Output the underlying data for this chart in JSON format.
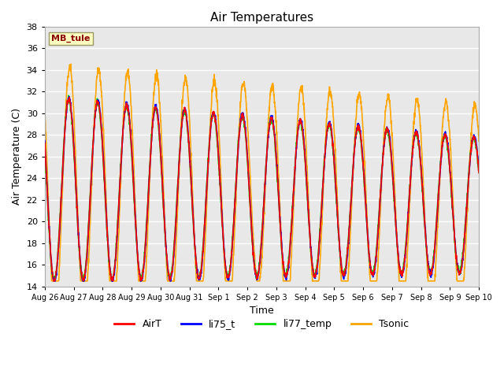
{
  "title": "Air Temperatures",
  "xlabel": "Time",
  "ylabel": "Air Temperature (C)",
  "ylim": [
    14,
    38
  ],
  "yticks": [
    14,
    16,
    18,
    20,
    22,
    24,
    26,
    28,
    30,
    32,
    34,
    36,
    38
  ],
  "site_label": "MB_tule",
  "site_label_color": "#8B0000",
  "site_label_bg": "#FFFFC0",
  "series": {
    "AirT": {
      "color": "#FF0000",
      "lw": 1.2
    },
    "li75_t": {
      "color": "#0000FF",
      "lw": 1.2
    },
    "li77_temp": {
      "color": "#00DD00",
      "lw": 1.2
    },
    "Tsonic": {
      "color": "#FFA500",
      "lw": 1.2
    }
  },
  "bg_color": "#E8E8E8",
  "grid_color": "#FFFFFF",
  "date_labels": [
    "Aug 26",
    "Aug 27",
    "Aug 28",
    "Aug 29",
    "Aug 30",
    "Aug 31",
    "Sep 1",
    "Sep 2",
    "Sep 3",
    "Sep 4",
    "Sep 5",
    "Sep 6",
    "Sep 7",
    "Sep 8",
    "Sep 9",
    "Sep 10"
  ],
  "date_tick_positions": [
    0,
    1,
    2,
    3,
    4,
    5,
    6,
    7,
    8,
    9,
    10,
    11,
    12,
    13,
    14,
    15
  ]
}
